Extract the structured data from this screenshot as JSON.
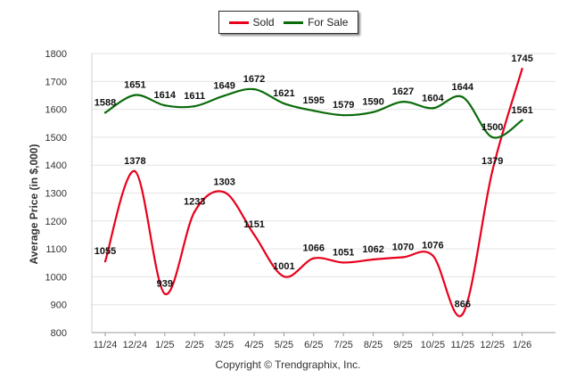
{
  "legend": {
    "sold_label": "Sold",
    "for_sale_label": "For Sale"
  },
  "footer": {
    "copyright": "Copyright © Trendgraphix, Inc."
  },
  "colors": {
    "sold": "#e8001c",
    "for_sale": "#0b6b0b",
    "grid": "#e3e3e3",
    "axis_text": "#333333",
    "label_text": "#111111"
  },
  "chart_data": {
    "type": "line",
    "title": "",
    "xlabel": "",
    "ylabel": "Average Price (in $,000)",
    "ylim": [
      800,
      1800
    ],
    "yticks": [
      800,
      900,
      1000,
      1100,
      1200,
      1300,
      1400,
      1500,
      1600,
      1700,
      1800
    ],
    "grid": true,
    "legend_position": "top-center",
    "categories": [
      "11/24",
      "12/24",
      "1/25",
      "2/25",
      "3/25",
      "4/25",
      "5/25",
      "6/25",
      "7/25",
      "8/25",
      "9/25",
      "10/25",
      "11/25",
      "12/25",
      "1/26"
    ],
    "series": [
      {
        "name": "Sold",
        "color": "#e8001c",
        "values": [
          1055,
          1378,
          939,
          1233,
          1303,
          1151,
          1001,
          1066,
          1051,
          1062,
          1070,
          1076,
          866,
          1379,
          1745
        ]
      },
      {
        "name": "For Sale",
        "color": "#0b6b0b",
        "values": [
          1588,
          1651,
          1614,
          1611,
          1649,
          1672,
          1621,
          1595,
          1579,
          1590,
          1627,
          1604,
          1644,
          1500,
          1561
        ]
      }
    ]
  }
}
